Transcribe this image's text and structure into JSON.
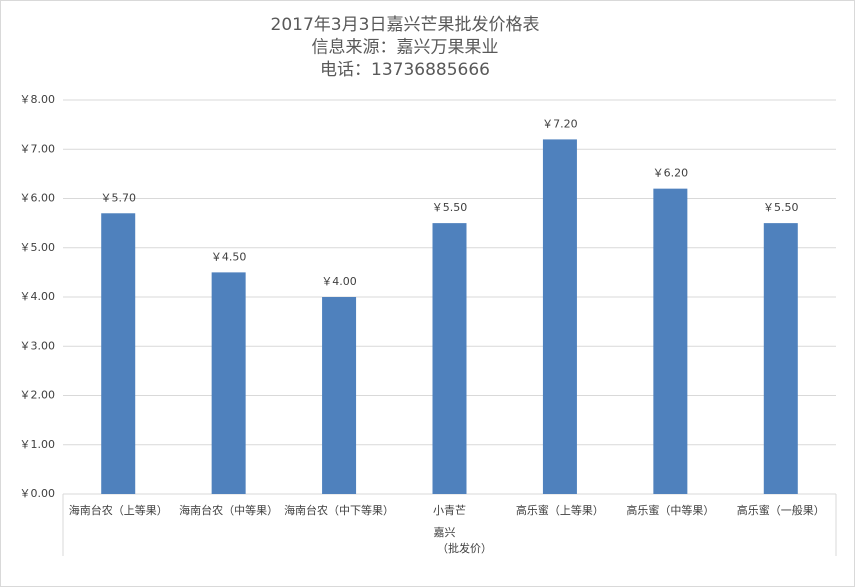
{
  "chart_data": {
    "type": "bar",
    "title": [
      "2017年3月3日嘉兴芒果批发价格表",
      "信息来源：嘉兴万果果业",
      "电话：13736885666"
    ],
    "categories": [
      "海南台农（上等果）",
      "海南台农（中等果）",
      "海南台农（中下等果）",
      "小青芒",
      "高乐蜜（上等果）",
      "高乐蜜（中等果）",
      "高乐蜜（一般果）"
    ],
    "group_label": [
      "嘉兴",
      "（批发价）"
    ],
    "values": [
      5.7,
      4.5,
      4.0,
      5.5,
      7.2,
      6.2,
      5.5
    ],
    "value_labels": [
      "￥5.70",
      "￥4.50",
      "￥4.00",
      "￥5.50",
      "￥7.20",
      "￥6.20",
      "￥5.50"
    ],
    "color": "#4f81bd",
    "ylim": [
      0,
      8
    ],
    "yticks": [
      {
        "value": 0,
        "label": "￥0.00"
      },
      {
        "value": 1,
        "label": "￥1.00"
      },
      {
        "value": 2,
        "label": "￥2.00"
      },
      {
        "value": 3,
        "label": "￥3.00"
      },
      {
        "value": 4,
        "label": "￥4.00"
      },
      {
        "value": 5,
        "label": "￥5.00"
      },
      {
        "value": 6,
        "label": "￥6.00"
      },
      {
        "value": 7,
        "label": "￥7.00"
      },
      {
        "value": 8,
        "label": "￥8.00"
      }
    ],
    "grid": true
  }
}
